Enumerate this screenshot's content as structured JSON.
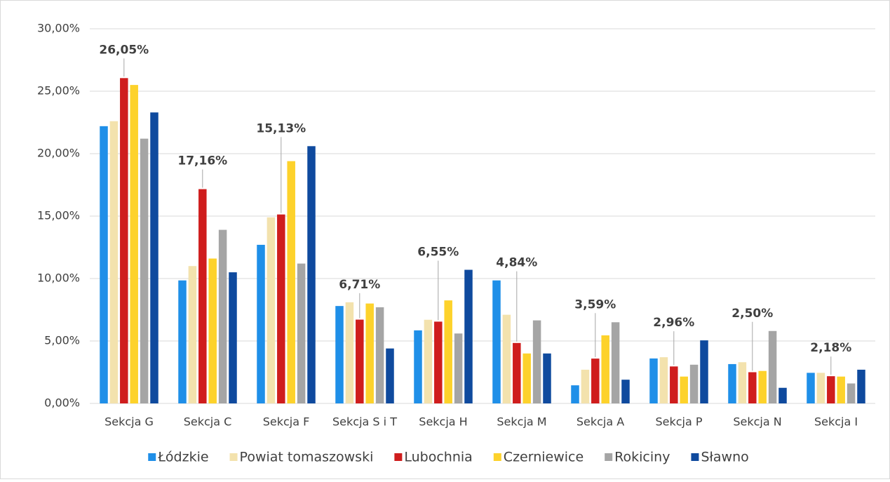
{
  "chart_data": {
    "type": "bar",
    "categories": [
      "Sekcja G",
      "Sekcja C",
      "Sekcja F",
      "Sekcja S i T",
      "Sekcja H",
      "Sekcja M",
      "Sekcja A",
      "Sekcja P",
      "Sekcja N",
      "Sekcja I"
    ],
    "series": [
      {
        "name": "Łódzkie",
        "color": "#1f8fe8",
        "values": [
          22.2,
          9.85,
          12.7,
          7.8,
          5.85,
          9.85,
          1.45,
          3.6,
          3.15,
          2.45
        ]
      },
      {
        "name": "Powiat tomaszowski",
        "color": "#f3e2ad",
        "values": [
          22.6,
          11.0,
          14.9,
          8.1,
          6.7,
          7.1,
          2.7,
          3.7,
          3.3,
          2.45
        ]
      },
      {
        "name": "Lubochnia",
        "color": "#cf1d1d",
        "values": [
          26.05,
          17.16,
          15.13,
          6.71,
          6.55,
          4.84,
          3.59,
          2.96,
          2.5,
          2.18
        ],
        "value_labels": [
          "26,05%",
          "17,16%",
          "15,13%",
          "6,71%",
          "6,55%",
          "4,84%",
          "3,59%",
          "2,96%",
          "2,50%",
          "2,18%"
        ]
      },
      {
        "name": "Czerniewice",
        "color": "#fdd22b",
        "values": [
          25.5,
          11.6,
          19.4,
          8.0,
          8.25,
          4.0,
          5.45,
          2.15,
          2.6,
          2.15
        ]
      },
      {
        "name": "Rokiciny",
        "color": "#a5a5a5",
        "values": [
          21.2,
          13.9,
          11.2,
          7.7,
          5.6,
          6.65,
          6.5,
          3.1,
          5.8,
          1.6
        ]
      },
      {
        "name": "Sławno",
        "color": "#0f4a9e",
        "values": [
          23.3,
          10.5,
          20.6,
          4.4,
          10.7,
          4.0,
          1.9,
          5.05,
          1.25,
          2.7
        ]
      }
    ],
    "ylim": [
      0,
      30
    ],
    "yticks": [
      {
        "value": 0,
        "label": "0,00%"
      },
      {
        "value": 5,
        "label": "5,00%"
      },
      {
        "value": 10,
        "label": "10,00%"
      },
      {
        "value": 15,
        "label": "15,00%"
      },
      {
        "value": 20,
        "label": "20,00%"
      },
      {
        "value": 25,
        "label": "25,00%"
      },
      {
        "value": 30,
        "label": "30,00%"
      }
    ],
    "grid": true,
    "legend": "bottom"
  }
}
